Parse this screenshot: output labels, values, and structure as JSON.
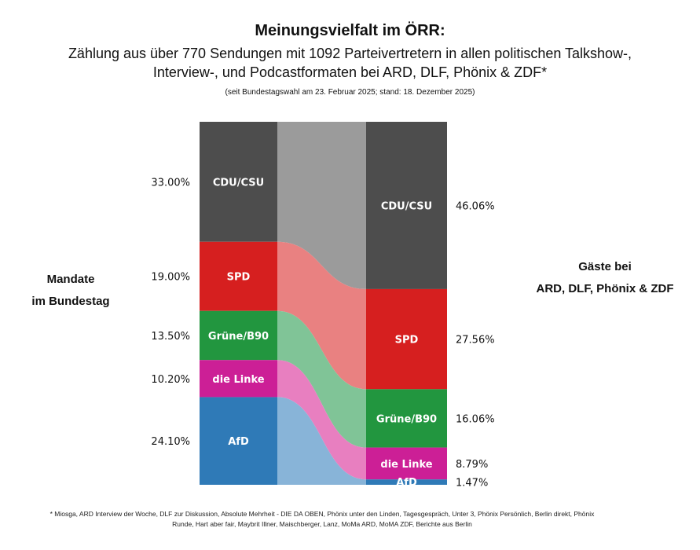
{
  "title": "Meinungsvielfalt im ÖRR:",
  "subtitle_line1": "Zählung aus über 770 Sendungen mit 1092 Parteivertretern in allen politischen Talkshow-,",
  "subtitle_line2": "Interview-, und Podcastformaten bei ARD, DLF, Phönix & ZDF*",
  "subtitle_note": "(seit Bundestagswahl am 23. Februar 2025; stand: 18. Dezember 2025)",
  "footnote": "* Miosga, ARD Interview der Woche, DLF zur Diskussion, Absolute Mehrheit - DIE DA OBEN, Phönix unter den Linden, Tagesgespräch, Unter 3, Phönix Persönlich, Berlin direkt, Phönix Runde, Hart aber fair, Maybrit Illner, Maischberger, Lanz, MoMa ARD, MoMA ZDF, Berichte aus Berlin",
  "chart_data": {
    "type": "sankey",
    "left_label_line1": "Mandate",
    "left_label_line2": "im Bundestag",
    "right_label_line1": "Gäste bei",
    "right_label_line2": "ARD, DLF, Phönix & ZDF",
    "parties": [
      {
        "name": "CDU/CSU",
        "left": 33.0,
        "right": 46.06,
        "left_label": "33.00%",
        "right_label": "46.06%",
        "color": "#4d4d4d",
        "link_color": "#9b9b9b"
      },
      {
        "name": "SPD",
        "left": 19.0,
        "right": 27.56,
        "left_label": "19.00%",
        "right_label": "27.56%",
        "color": "#d61f1f",
        "link_color": "#e98181"
      },
      {
        "name": "Grüne/B90",
        "left": 13.5,
        "right": 16.06,
        "left_label": "13.50%",
        "right_label": "16.06%",
        "color": "#22963f",
        "link_color": "#80c497"
      },
      {
        "name": "die Linke",
        "left": 10.2,
        "right": 8.79,
        "left_label": "10.20%",
        "right_label": "8.79%",
        "color": "#cc1f96",
        "link_color": "#e87fc0"
      },
      {
        "name": "AfD",
        "left": 24.1,
        "right": 1.47,
        "left_label": "24.10%",
        "right_label": "1.47%",
        "color": "#2f7ab7",
        "link_color": "#88b4d8"
      }
    ]
  }
}
